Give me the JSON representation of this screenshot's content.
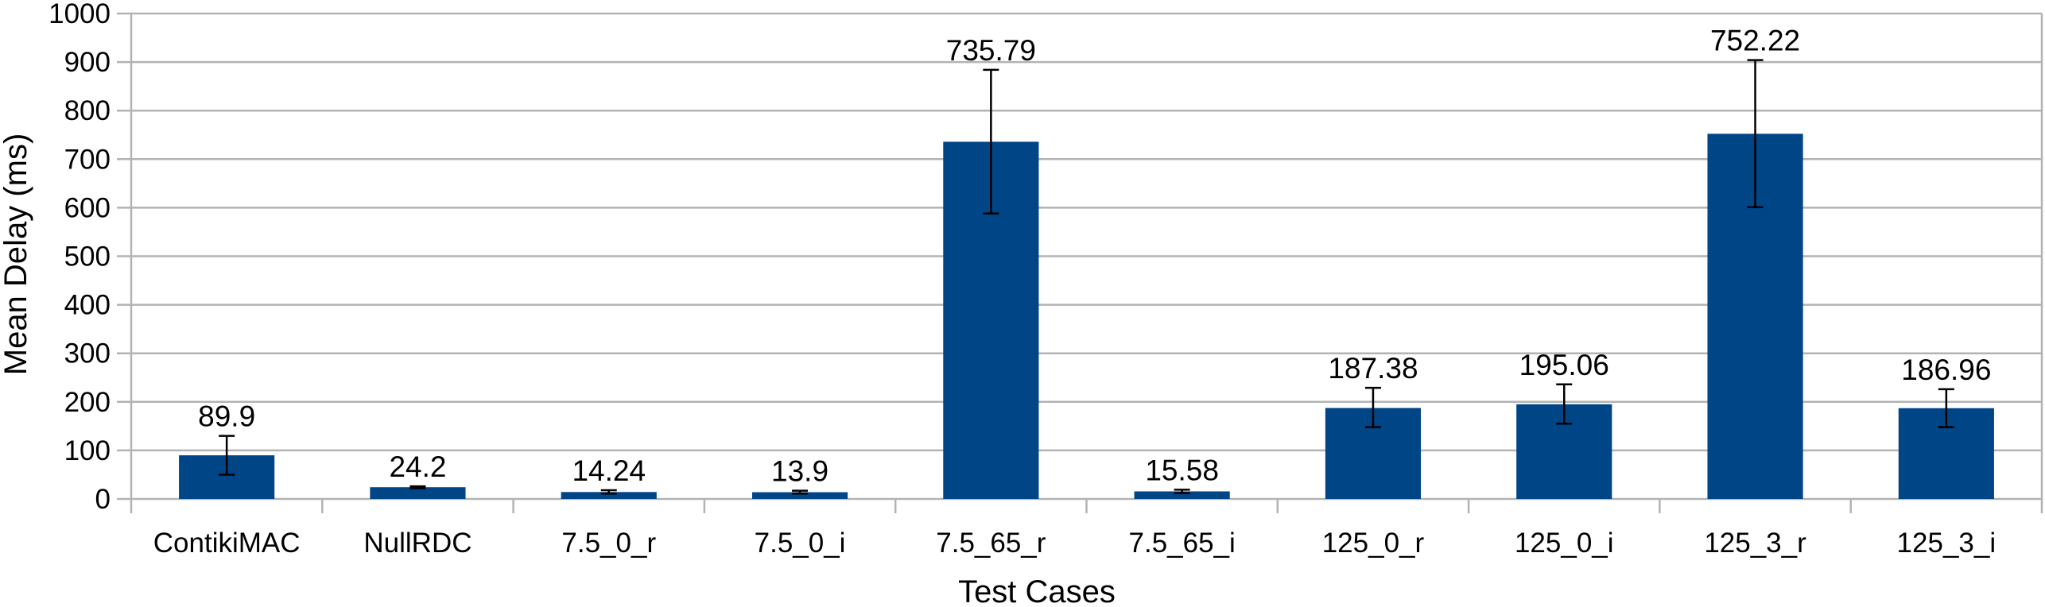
{
  "chart_data": {
    "type": "bar",
    "title": "",
    "xlabel": "Test Cases",
    "ylabel": "Mean Delay (ms)",
    "ylim": [
      0,
      1000
    ],
    "y_ticks": [
      "0",
      "100",
      "200",
      "300",
      "400",
      "500",
      "600",
      "700",
      "800",
      "900",
      "1000"
    ],
    "grid": true,
    "legend": "none",
    "bar_color": "#004586",
    "categories": [
      "ContikiMAC",
      "NullRDC",
      "7.5_0_r",
      "7.5_0_i",
      "7.5_65_r",
      "7.5_65_i",
      "125_0_r",
      "125_0_i",
      "125_3_r",
      "125_3_i"
    ],
    "values": [
      89.9,
      24.2,
      14.24,
      13.9,
      735.79,
      15.58,
      187.38,
      195.06,
      752.22,
      186.96
    ],
    "data_labels": [
      "89.9",
      "24.2",
      "14.24",
      "13.9",
      "735.79",
      "15.58",
      "187.38",
      "195.06",
      "752.22",
      "186.96"
    ],
    "error_bars": [
      {
        "low": 50,
        "high": 130
      },
      {
        "low": 22,
        "high": 26
      },
      {
        "low": 11,
        "high": 18
      },
      {
        "low": 11,
        "high": 17
      },
      {
        "low": 588,
        "high": 884
      },
      {
        "low": 12,
        "high": 19
      },
      {
        "low": 148,
        "high": 229
      },
      {
        "low": 155,
        "high": 236
      },
      {
        "low": 601,
        "high": 904
      },
      {
        "low": 148,
        "high": 226
      }
    ]
  }
}
